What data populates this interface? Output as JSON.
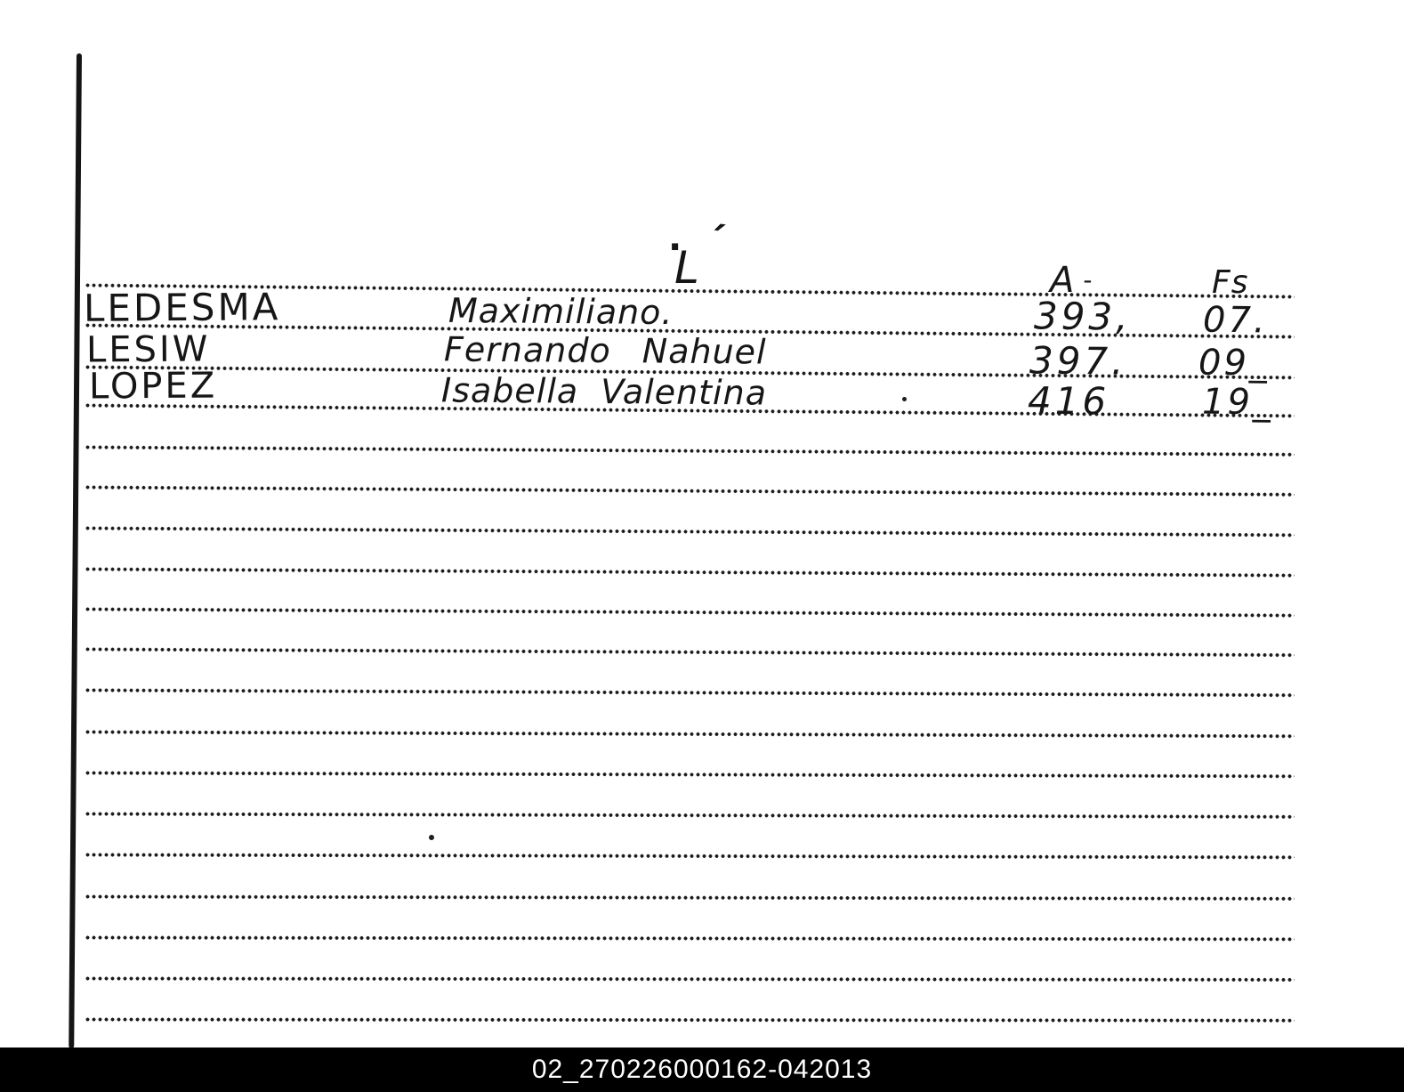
{
  "document": {
    "header": {
      "index_letter_dot": "·",
      "index_letter": "L",
      "index_letter_tick": "´",
      "col_a": "A",
      "col_a_mark": "-",
      "col_fs": "Fs"
    },
    "rows": [
      {
        "surname": "LEDESMA",
        "given_names": "Maximiliano.",
        "a": "393,",
        "fs": "07."
      },
      {
        "surname": "LESIW",
        "given_names": "Fernando Nahuel",
        "a": "397.",
        "fs": "09_"
      },
      {
        "surname": "LOPEZ",
        "given_names": "Isabella Valentina",
        "a": "416",
        "fs": "19_"
      }
    ],
    "footer": {
      "reference": "02_270226000162-042013"
    },
    "colors": {
      "ink": "#1a1a1a",
      "paper": "#ffffff",
      "footer_bg": "#000000",
      "footer_text": "#ffffff"
    }
  }
}
